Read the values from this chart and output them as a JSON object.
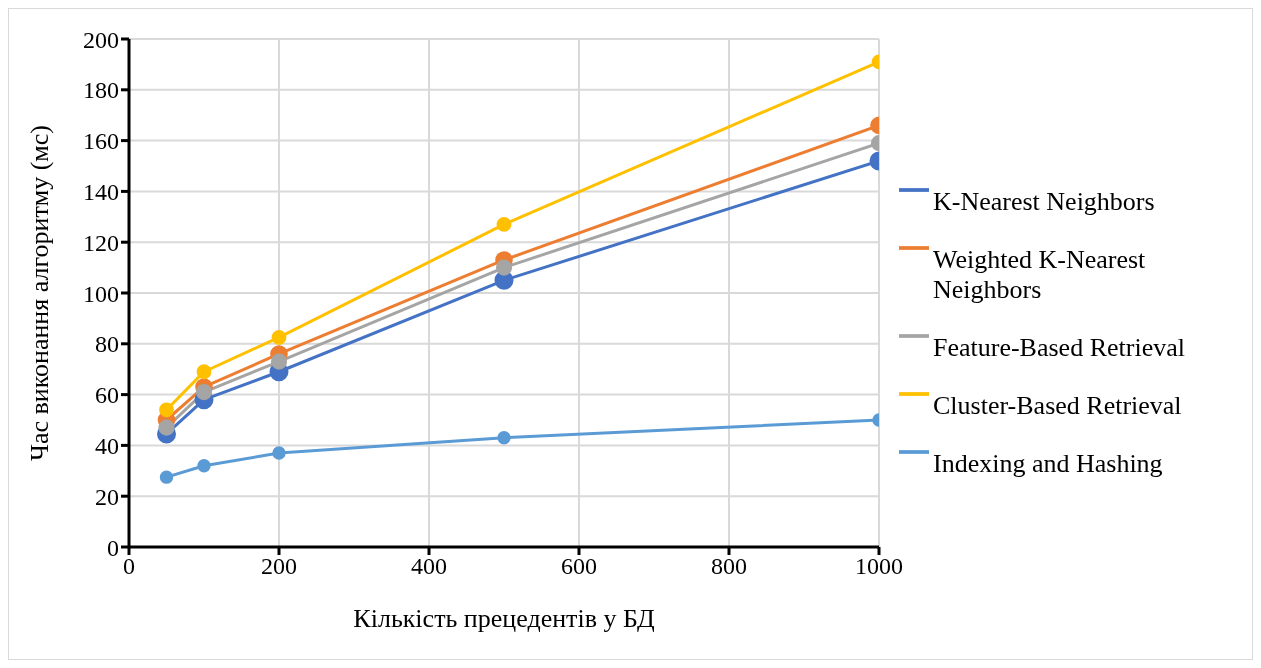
{
  "chart_data": {
    "type": "line",
    "xlabel": "Кількість прецедентів у БД",
    "ylabel": "Час виконання алгоритму (мс)",
    "x": [
      50,
      100,
      200,
      500,
      1000
    ],
    "series": [
      {
        "name": "K-Nearest Neighbors",
        "color": "#4472c4",
        "values": [
          44.5,
          58,
          69,
          105,
          152
        ]
      },
      {
        "name": "Weighted K-Nearest Neighbors",
        "color": "#ed7d31",
        "values": [
          50,
          63,
          76,
          113,
          166
        ]
      },
      {
        "name": "Feature-Based Retrieval",
        "color": "#a5a5a5",
        "values": [
          47,
          61,
          73,
          110,
          159
        ]
      },
      {
        "name": "Cluster-Based Retrieval",
        "color": "#ffc000",
        "values": [
          54,
          69,
          82.5,
          127,
          191
        ]
      },
      {
        "name": "Indexing and Hashing",
        "color": "#5b9bd5",
        "values": [
          27.5,
          32,
          37,
          43,
          50
        ]
      }
    ],
    "xlim": [
      0,
      1000
    ],
    "xticks": [
      0,
      200,
      400,
      600,
      800,
      1000
    ],
    "ylim": [
      0,
      200
    ],
    "yticks": [
      0,
      20,
      40,
      60,
      80,
      100,
      120,
      140,
      160,
      180,
      200
    ],
    "grid": true,
    "legend": "right",
    "marker": "circle",
    "line_style": "solid"
  }
}
